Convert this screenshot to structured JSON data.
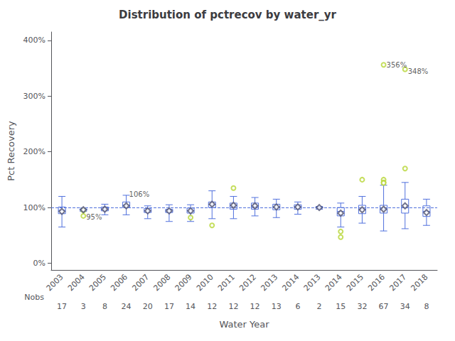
{
  "chart_data": {
    "type": "box",
    "title": "Distribution of pctrecov by water_yr",
    "xlabel": "Water Year",
    "ylabel": "Pct Recovery",
    "categories": [
      "2003",
      "2004",
      "2005",
      "2006",
      "2007",
      "2008",
      "2009",
      "2010",
      "2011",
      "2012",
      "2013",
      "2014",
      "2013",
      "2014",
      "2015",
      "2016",
      "2017",
      "2018"
    ],
    "boxes": [
      {
        "q1": 89,
        "median": 95,
        "q3": 101,
        "whislo": 65,
        "whishi": 120,
        "mean": 93,
        "fliers": []
      },
      {
        "q1": 95,
        "median": 96,
        "q3": 97,
        "whislo": 93,
        "whishi": 99,
        "mean": 96,
        "fliers": [
          85,
          95
        ]
      },
      {
        "q1": 94,
        "median": 97,
        "q3": 101,
        "whislo": 87,
        "whishi": 106,
        "mean": 97,
        "fliers": []
      },
      {
        "q1": 100,
        "median": 104,
        "q3": 110,
        "whislo": 87,
        "whishi": 122,
        "mean": 103,
        "fliers": []
      },
      {
        "q1": 91,
        "median": 94,
        "q3": 98,
        "whislo": 80,
        "whishi": 103,
        "mean": 94,
        "fliers": []
      },
      {
        "q1": 91,
        "median": 94,
        "q3": 97,
        "whislo": 75,
        "whishi": 105,
        "mean": 94,
        "fliers": []
      },
      {
        "q1": 90,
        "median": 94,
        "q3": 99,
        "whislo": 75,
        "whishi": 105,
        "mean": 94,
        "fliers": [
          82
        ]
      },
      {
        "q1": 100,
        "median": 105,
        "q3": 110,
        "whislo": 80,
        "whishi": 130,
        "mean": 106,
        "fliers": [
          68
        ]
      },
      {
        "q1": 97,
        "median": 103,
        "q3": 108,
        "whislo": 80,
        "whishi": 120,
        "mean": 104,
        "fliers": [
          135
        ]
      },
      {
        "q1": 97,
        "median": 102,
        "q3": 108,
        "whislo": 85,
        "whishi": 118,
        "mean": 103,
        "fliers": []
      },
      {
        "q1": 96,
        "median": 101,
        "q3": 106,
        "whislo": 82,
        "whishi": 115,
        "mean": 101,
        "fliers": []
      },
      {
        "q1": 97,
        "median": 102,
        "q3": 105,
        "whislo": 88,
        "whishi": 110,
        "mean": 101,
        "fliers": []
      },
      {
        "q1": 99,
        "median": 100,
        "q3": 101,
        "whislo": 97,
        "whishi": 102,
        "mean": 100,
        "fliers": []
      },
      {
        "q1": 85,
        "median": 93,
        "q3": 100,
        "whislo": 65,
        "whishi": 108,
        "mean": 90,
        "fliers": [
          47,
          57
        ]
      },
      {
        "q1": 89,
        "median": 97,
        "q3": 104,
        "whislo": 72,
        "whishi": 120,
        "mean": 96,
        "fliers": [
          150
        ]
      },
      {
        "q1": 90,
        "median": 97,
        "q3": 104,
        "whislo": 58,
        "whishi": 140,
        "mean": 97,
        "fliers": [
          150,
          145,
          144,
          356
        ]
      },
      {
        "q1": 90,
        "median": 100,
        "q3": 115,
        "whislo": 62,
        "whishi": 145,
        "mean": 103,
        "fliers": [
          170,
          348
        ]
      },
      {
        "q1": 84,
        "median": 93,
        "q3": 103,
        "whislo": 68,
        "whishi": 115,
        "mean": 91,
        "fliers": []
      }
    ],
    "nobs_label": "Nobs",
    "nobs": [
      17,
      3,
      8,
      24,
      20,
      17,
      14,
      12,
      12,
      12,
      13,
      6,
      2,
      15,
      32,
      67,
      34,
      8
    ],
    "annotations": [
      {
        "text": "95%",
        "category_index": 1,
        "y": 83
      },
      {
        "text": "106%",
        "category_index": 3,
        "y": 124
      },
      {
        "text": "356%",
        "category_index": 15,
        "y": 356
      },
      {
        "text": "348%",
        "category_index": 16,
        "y": 344
      }
    ],
    "reference_line": 100,
    "ylim": [
      -12,
      415
    ],
    "yticks": [
      {
        "value": 0,
        "label": "0%"
      },
      {
        "value": 100,
        "label": "100%"
      },
      {
        "value": 200,
        "label": "200%"
      },
      {
        "value": 300,
        "label": "300%"
      },
      {
        "value": 400,
        "label": "400%"
      }
    ],
    "grid": false
  }
}
